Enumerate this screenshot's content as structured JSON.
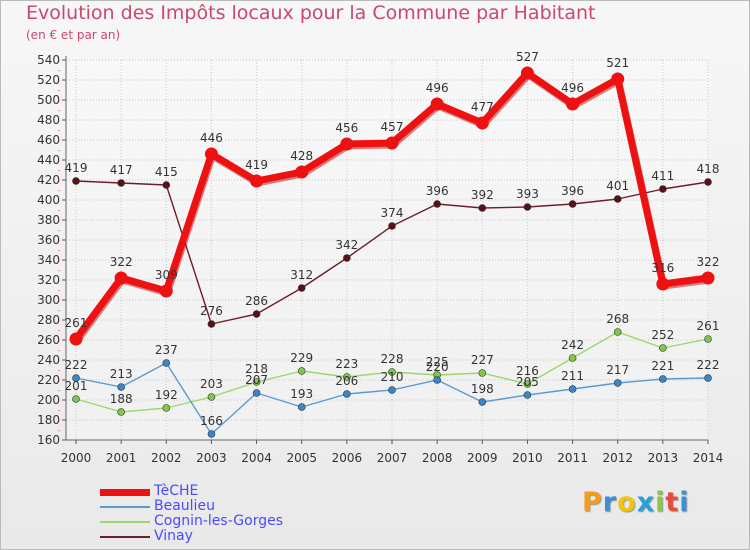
{
  "title": "Evolution des Impôts locaux pour la Commune par Habitant",
  "subtitle": "(en € et par an)",
  "brand": {
    "letters": [
      "P",
      "r",
      "o",
      "x",
      "i",
      "t",
      "i"
    ],
    "colors": [
      "#f39c1f",
      "#3a8fd8",
      "#f1c40f",
      "#2a9fd8",
      "#8dc63f",
      "#e64a3c",
      "#3a8fd8"
    ]
  },
  "chart_data": {
    "type": "line",
    "title": "Evolution des Impôts locaux pour la Commune par Habitant",
    "subtitle": "(en € et par an)",
    "xlabel": "",
    "ylabel": "",
    "ylim": [
      160,
      540
    ],
    "yticks": [
      160,
      180,
      200,
      220,
      240,
      260,
      280,
      300,
      320,
      340,
      360,
      380,
      400,
      420,
      440,
      460,
      480,
      500,
      520,
      540
    ],
    "x": [
      "2000",
      "2001",
      "2002",
      "2003",
      "2004",
      "2005",
      "2006",
      "2007",
      "2008",
      "2009",
      "2010",
      "2011",
      "2012",
      "2013",
      "2014"
    ],
    "grid": true,
    "legend_position": "bottom-left",
    "series": [
      {
        "name": "Vinay",
        "color": "#6b1f2a",
        "marker": "#5a1018",
        "values": [
          419,
          417,
          415,
          276,
          286,
          312,
          342,
          374,
          396,
          392,
          393,
          396,
          401,
          411,
          418
        ]
      },
      {
        "name": "Cognin-les-Gorges",
        "color": "#9ad86a",
        "marker": "#7ec84a",
        "values": [
          201,
          188,
          192,
          203,
          218,
          229,
          223,
          228,
          225,
          227,
          216,
          242,
          268,
          252,
          261
        ]
      },
      {
        "name": "Beaulieu",
        "color": "#5b9bd0",
        "marker": "#3a86c8",
        "values": [
          222,
          213,
          237,
          166,
          207,
          193,
          206,
          210,
          220,
          198,
          205,
          211,
          217,
          221,
          222
        ]
      },
      {
        "name": "TèCHE",
        "color": "#ee1111",
        "marker": "#ee1111",
        "values": [
          261,
          322,
          309,
          446,
          419,
          428,
          456,
          457,
          496,
          477,
          527,
          496,
          521,
          316,
          322
        ]
      }
    ],
    "legend_order": [
      "TèCHE",
      "Beaulieu",
      "Cognin-les-Gorges",
      "Vinay"
    ]
  }
}
